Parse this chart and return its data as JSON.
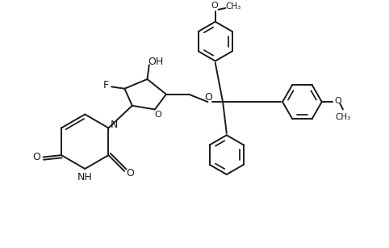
{
  "background_color": "#ffffff",
  "line_color": "#1a1a1a",
  "line_width": 1.4,
  "font_size": 9,
  "figsize": [
    4.82,
    3.07
  ],
  "dpi": 100,
  "xlim": [
    0,
    10
  ],
  "ylim": [
    0,
    6.5
  ]
}
